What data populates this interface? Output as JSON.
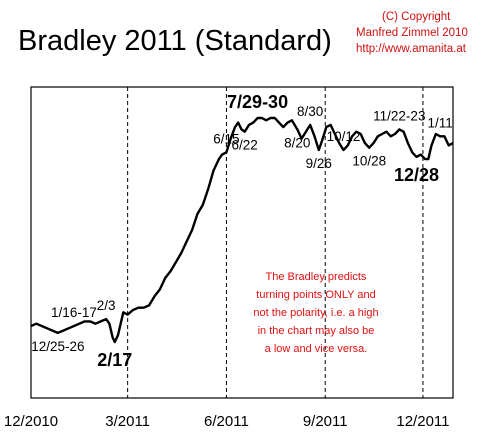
{
  "chart_data": {
    "type": "line",
    "title": "Bradley 2011 (Standard)",
    "copyright": [
      "(C) Copyright",
      "Manfred Zimmel 2010",
      "http://www.amanita.at"
    ],
    "xlabel": "",
    "ylabel": "",
    "x_ticks": [
      "12/2010",
      "3/2011",
      "6/2011",
      "9/2011",
      "12/2011"
    ],
    "x_tick_days": [
      0,
      90,
      182,
      274,
      365
    ],
    "x_range_days": [
      0,
      393
    ],
    "y_range": [
      0,
      100
    ],
    "gridlines": "vertical dashed at each tick",
    "series": [
      {
        "points": [
          [
            0,
            14
          ],
          [
            5,
            15
          ],
          [
            10,
            14
          ],
          [
            15,
            13
          ],
          [
            20,
            12
          ],
          [
            25,
            11
          ],
          [
            30,
            12
          ],
          [
            35,
            13
          ],
          [
            40,
            14
          ],
          [
            45,
            15
          ],
          [
            50,
            16
          ],
          [
            55,
            16
          ],
          [
            60,
            15
          ],
          [
            65,
            16
          ],
          [
            70,
            17
          ],
          [
            73,
            15
          ],
          [
            76,
            9
          ],
          [
            78,
            7
          ],
          [
            81,
            10
          ],
          [
            84,
            16
          ],
          [
            86,
            20
          ],
          [
            90,
            19
          ],
          [
            95,
            21
          ],
          [
            100,
            22
          ],
          [
            105,
            22
          ],
          [
            110,
            23
          ],
          [
            115,
            27
          ],
          [
            120,
            30
          ],
          [
            125,
            35
          ],
          [
            130,
            38
          ],
          [
            135,
            42
          ],
          [
            140,
            46
          ],
          [
            145,
            51
          ],
          [
            150,
            56
          ],
          [
            155,
            63
          ],
          [
            160,
            67
          ],
          [
            165,
            74
          ],
          [
            170,
            82
          ],
          [
            175,
            87
          ],
          [
            178,
            89
          ],
          [
            182,
            90
          ],
          [
            186,
            96
          ],
          [
            190,
            101
          ],
          [
            193,
            103
          ],
          [
            196,
            100
          ],
          [
            199,
            99
          ],
          [
            203,
            102
          ],
          [
            207,
            103
          ],
          [
            211,
            105
          ],
          [
            215,
            105
          ],
          [
            219,
            104
          ],
          [
            223,
            105
          ],
          [
            227,
            105
          ],
          [
            231,
            103
          ],
          [
            235,
            101
          ],
          [
            239,
            103
          ],
          [
            243,
            104
          ],
          [
            248,
            100
          ],
          [
            252,
            96
          ],
          [
            256,
            99
          ],
          [
            260,
            102
          ],
          [
            264,
            97
          ],
          [
            268,
            91
          ],
          [
            271,
            95
          ],
          [
            275,
            101
          ],
          [
            279,
            102
          ],
          [
            283,
            98
          ],
          [
            287,
            94
          ],
          [
            291,
            91
          ],
          [
            295,
            93
          ],
          [
            299,
            97
          ],
          [
            303,
            99
          ],
          [
            307,
            98
          ],
          [
            311,
            94
          ],
          [
            315,
            92
          ],
          [
            319,
            94
          ],
          [
            323,
            97
          ],
          [
            327,
            98
          ],
          [
            331,
            99
          ],
          [
            335,
            97
          ],
          [
            339,
            98
          ],
          [
            343,
            100
          ],
          [
            347,
            99
          ],
          [
            351,
            94
          ],
          [
            355,
            90
          ],
          [
            359,
            88
          ],
          [
            363,
            89
          ],
          [
            367,
            87
          ],
          [
            370,
            87
          ],
          [
            373,
            93
          ],
          [
            377,
            98
          ],
          [
            381,
            97
          ],
          [
            385,
            97
          ],
          [
            389,
            93
          ],
          [
            393,
            94
          ]
        ]
      }
    ],
    "annotations": [
      {
        "text": "1/16-17",
        "x": 40,
        "y": 14,
        "style": "normal",
        "pos": "above"
      },
      {
        "text": "12/25-26",
        "x": 25,
        "y": 11,
        "style": "normal",
        "pos": "below"
      },
      {
        "text": "2/3",
        "x": 70,
        "y": 17,
        "style": "normal",
        "pos": "above"
      },
      {
        "text": "2/17",
        "x": 78,
        "y": 7,
        "style": "major",
        "pos": "below"
      },
      {
        "text": "6/15",
        "x": 182,
        "y": 90,
        "style": "normal",
        "pos": "above"
      },
      {
        "text": "6/22",
        "x": 199,
        "y": 99,
        "style": "normal",
        "pos": "below"
      },
      {
        "text": "7/29-30",
        "x": 211,
        "y": 105,
        "style": "major",
        "pos": "above"
      },
      {
        "text": "8/20",
        "x": 248,
        "y": 100,
        "style": "normal",
        "pos": "below"
      },
      {
        "text": "8/30",
        "x": 260,
        "y": 102,
        "style": "normal",
        "pos": "above"
      },
      {
        "text": "9/26",
        "x": 268,
        "y": 91,
        "style": "normal",
        "pos": "below"
      },
      {
        "text": "10/12",
        "x": 291,
        "y": 91,
        "style": "normal",
        "pos": "above"
      },
      {
        "text": "10/28",
        "x": 315,
        "y": 92,
        "style": "normal",
        "pos": "below"
      },
      {
        "text": "11/22-23",
        "x": 343,
        "y": 100,
        "style": "normal",
        "pos": "above"
      },
      {
        "text": "12/28",
        "x": 359,
        "y": 88,
        "style": "major",
        "pos": "below"
      },
      {
        "text": "1/11",
        "x": 381,
        "y": 97,
        "style": "normal",
        "pos": "above"
      }
    ],
    "note": [
      "The Bradley predicts",
      "turning points ONLY and",
      "not the polarity, i.e. a high",
      "in the chart may also be",
      "a low and vice versa."
    ],
    "colors": {
      "line": "#000000",
      "note": "#e01010",
      "copyright": "#d01010",
      "grid": "#000000"
    }
  }
}
